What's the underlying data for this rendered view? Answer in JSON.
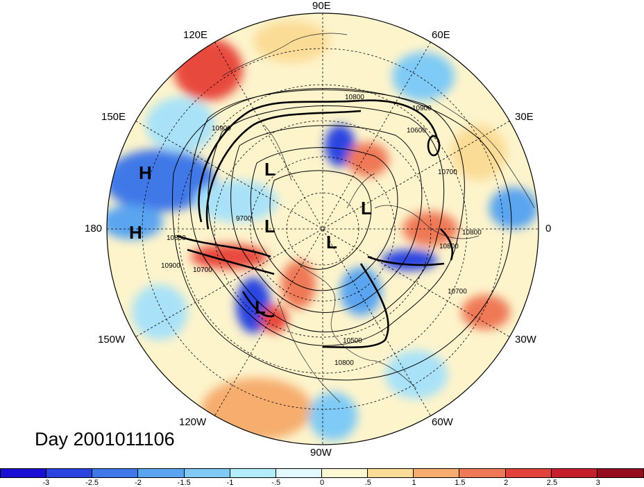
{
  "title_text": "Day 2001011106",
  "lon_labels": [
    "90E",
    "60E",
    "30E",
    "0",
    "30W",
    "60W",
    "90W",
    "120W",
    "150W",
    "180",
    "150E",
    "120E"
  ],
  "system_markers": [
    "H",
    "H",
    "L",
    "L",
    "L",
    "L",
    "L"
  ],
  "contour_labels": [
    "10800",
    "10900",
    "10600",
    "10700",
    "10800",
    "10900",
    "9700",
    "10700",
    "10800",
    "10900",
    "10800",
    "10700",
    "10500",
    "10800"
  ],
  "colorbar": {
    "ticks": [
      "-3",
      "-2.5",
      "-2",
      "-1.5",
      "-1",
      "-.5",
      "0",
      ".5",
      "1",
      "1.5",
      "2",
      "2.5",
      "3"
    ],
    "colors": [
      "#1a0fd4",
      "#2a44e0",
      "#3f78e8",
      "#5aa4f0",
      "#7fcaf6",
      "#b3ecfb",
      "#e2fafd",
      "#fdf8d2",
      "#fbdc96",
      "#f6ad6e",
      "#ef7856",
      "#e2413c",
      "#c41f2b",
      "#960e1e"
    ]
  },
  "colors": {
    "ring": "#000000",
    "graticule": "#000000",
    "contour": "#000000"
  }
}
